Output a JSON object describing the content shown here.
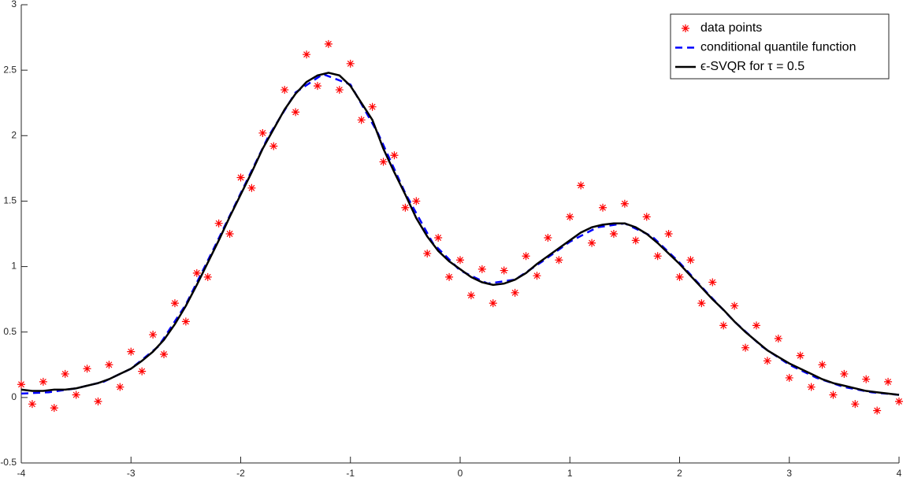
{
  "chart_data": {
    "type": "scatter-line",
    "xlim": [
      -4,
      4
    ],
    "ylim": [
      -0.5,
      3
    ],
    "xticks": [
      -4,
      -3,
      -2,
      -1,
      0,
      1,
      2,
      3,
      4
    ],
    "yticks": [
      -0.5,
      0,
      0.5,
      1,
      1.5,
      2,
      2.5,
      3
    ],
    "legend": "top-right",
    "series": [
      {
        "name": "data points",
        "color": "#ff0000",
        "marker": "asterisk",
        "x": [
          -4.0,
          -3.9,
          -3.8,
          -3.7,
          -3.6,
          -3.5,
          -3.4,
          -3.3,
          -3.2,
          -3.1,
          -3.0,
          -2.9,
          -2.8,
          -2.7,
          -2.6,
          -2.5,
          -2.4,
          -2.3,
          -2.2,
          -2.1,
          -2.0,
          -1.9,
          -1.8,
          -1.7,
          -1.6,
          -1.5,
          -1.4,
          -1.3,
          -1.2,
          -1.1,
          -1.0,
          -0.9,
          -0.8,
          -0.7,
          -0.6,
          -0.5,
          -0.4,
          -0.3,
          -0.2,
          -0.1,
          0.0,
          0.1,
          0.2,
          0.3,
          0.4,
          0.5,
          0.6,
          0.7,
          0.8,
          0.9,
          1.0,
          1.1,
          1.2,
          1.3,
          1.4,
          1.5,
          1.6,
          1.7,
          1.8,
          1.9,
          2.0,
          2.1,
          2.2,
          2.3,
          2.4,
          2.5,
          2.6,
          2.7,
          2.8,
          2.9,
          3.0,
          3.1,
          3.2,
          3.3,
          3.4,
          3.5,
          3.6,
          3.7,
          3.8,
          3.9,
          4.0
        ],
        "values": [
          0.1,
          -0.05,
          0.12,
          -0.08,
          0.18,
          0.02,
          0.22,
          -0.03,
          0.25,
          0.08,
          0.35,
          0.2,
          0.48,
          0.33,
          0.72,
          0.58,
          0.95,
          0.92,
          1.33,
          1.25,
          1.68,
          1.6,
          2.02,
          1.92,
          2.35,
          2.18,
          2.62,
          2.38,
          2.7,
          2.35,
          2.55,
          2.12,
          2.22,
          1.8,
          1.85,
          1.45,
          1.5,
          1.1,
          1.22,
          0.92,
          1.05,
          0.78,
          0.98,
          0.72,
          0.97,
          0.8,
          1.08,
          0.93,
          1.22,
          1.05,
          1.38,
          1.62,
          1.18,
          1.45,
          1.25,
          1.48,
          1.2,
          1.38,
          1.08,
          1.25,
          0.92,
          1.05,
          0.72,
          0.88,
          0.55,
          0.7,
          0.38,
          0.55,
          0.28,
          0.45,
          0.15,
          0.32,
          0.08,
          0.25,
          0.02,
          0.18,
          -0.05,
          0.14,
          -0.1,
          0.12,
          -0.03
        ]
      },
      {
        "name": "conditional quantile function",
        "color": "#0000ff",
        "dash": true,
        "x": [
          -4,
          -3.75,
          -3.5,
          -3.25,
          -3,
          -2.75,
          -2.5,
          -2.25,
          -2,
          -1.75,
          -1.5,
          -1.25,
          -1,
          -0.75,
          -0.5,
          -0.25,
          0,
          0.25,
          0.5,
          0.75,
          1,
          1.25,
          1.5,
          1.75,
          2,
          2.25,
          2.5,
          2.75,
          3,
          3.25,
          3.5,
          3.75,
          4
        ],
        "values": [
          0.03,
          0.04,
          0.07,
          0.12,
          0.22,
          0.39,
          0.71,
          1.13,
          1.56,
          1.99,
          2.33,
          2.47,
          2.39,
          2.02,
          1.56,
          1.18,
          0.97,
          0.87,
          0.9,
          1.04,
          1.19,
          1.3,
          1.33,
          1.23,
          1.03,
          0.8,
          0.58,
          0.39,
          0.25,
          0.15,
          0.08,
          0.04,
          0.02
        ]
      },
      {
        "name": "ϵ-SVQR for τ = 0.5",
        "color": "#000000",
        "x": [
          -4.0,
          -3.9,
          -3.8,
          -3.7,
          -3.6,
          -3.5,
          -3.4,
          -3.3,
          -3.2,
          -3.1,
          -3.0,
          -2.9,
          -2.8,
          -2.7,
          -2.6,
          -2.5,
          -2.4,
          -2.3,
          -2.2,
          -2.1,
          -2.0,
          -1.9,
          -1.8,
          -1.7,
          -1.6,
          -1.5,
          -1.4,
          -1.3,
          -1.2,
          -1.1,
          -1.0,
          -0.9,
          -0.8,
          -0.7,
          -0.6,
          -0.5,
          -0.4,
          -0.3,
          -0.2,
          -0.1,
          0.0,
          0.1,
          0.2,
          0.3,
          0.4,
          0.5,
          0.6,
          0.7,
          0.8,
          0.9,
          1.0,
          1.1,
          1.2,
          1.3,
          1.4,
          1.5,
          1.6,
          1.7,
          1.8,
          1.9,
          2.0,
          2.1,
          2.2,
          2.3,
          2.4,
          2.5,
          2.6,
          2.7,
          2.8,
          2.9,
          3.0,
          3.1,
          3.2,
          3.3,
          3.4,
          3.5,
          3.6,
          3.7,
          3.8,
          3.9,
          4.0
        ],
        "values": [
          0.06,
          0.05,
          0.05,
          0.06,
          0.06,
          0.07,
          0.09,
          0.11,
          0.14,
          0.18,
          0.22,
          0.28,
          0.35,
          0.44,
          0.56,
          0.7,
          0.86,
          1.03,
          1.2,
          1.38,
          1.55,
          1.72,
          1.9,
          2.05,
          2.2,
          2.32,
          2.41,
          2.46,
          2.48,
          2.46,
          2.38,
          2.25,
          2.12,
          1.9,
          1.72,
          1.55,
          1.37,
          1.23,
          1.12,
          1.04,
          0.98,
          0.92,
          0.88,
          0.86,
          0.87,
          0.9,
          0.95,
          1.02,
          1.08,
          1.14,
          1.2,
          1.26,
          1.3,
          1.32,
          1.33,
          1.33,
          1.3,
          1.25,
          1.18,
          1.1,
          1.02,
          0.93,
          0.84,
          0.75,
          0.67,
          0.58,
          0.5,
          0.43,
          0.36,
          0.31,
          0.26,
          0.22,
          0.18,
          0.14,
          0.11,
          0.09,
          0.07,
          0.05,
          0.04,
          0.03,
          0.02
        ]
      }
    ]
  }
}
